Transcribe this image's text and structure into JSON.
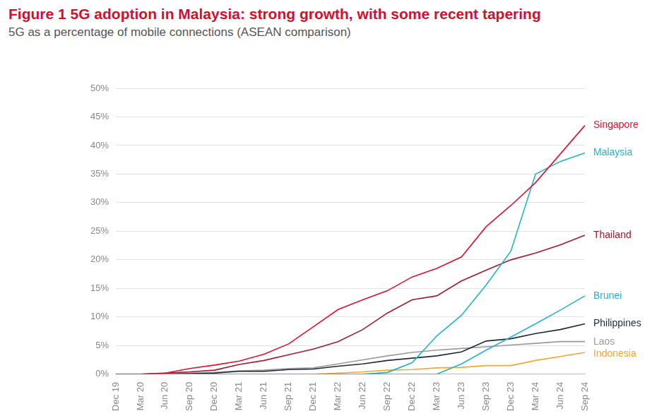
{
  "chart_data": {
    "type": "line",
    "title": "Figure 1 5G adoption in Malaysia: strong growth, with some recent tapering",
    "subtitle": "5G as a percentage of mobile connections (ASEAN comparison)",
    "categories": [
      "Dec 19",
      "Mar 20",
      "Jun 20",
      "Sep 20",
      "Dec 20",
      "Mar 21",
      "Jun 21",
      "Sep 21",
      "Dec 21",
      "Mar 22",
      "Jun 22",
      "Sep 22",
      "Dec 22",
      "Mar 23",
      "Jun 23",
      "Sep 23",
      "Dec 23",
      "Mar 24",
      "Jun 24",
      "Sep 24"
    ],
    "series": [
      {
        "name": "Singapore",
        "color": "#e4102e",
        "values": [
          0,
          0,
          0.2,
          1.0,
          1.6,
          2.3,
          3.5,
          5.3,
          8.3,
          11.3,
          13.0,
          14.6,
          17.0,
          18.5,
          20.5,
          25.8,
          29.5,
          33.5,
          38.5,
          43.5
        ]
      },
      {
        "name": "Malaysia",
        "color": "#1fb5c4",
        "values": [
          0,
          0,
          0,
          0,
          0,
          0,
          0,
          0,
          0,
          0,
          0,
          0.3,
          2.0,
          6.7,
          10.3,
          15.6,
          21.5,
          35.0,
          37.2,
          38.7
        ]
      },
      {
        "name": "Thailand",
        "color": "#a6192e",
        "values": [
          0,
          0,
          0.2,
          0.4,
          0.7,
          1.7,
          2.4,
          3.4,
          4.4,
          5.7,
          7.8,
          10.7,
          13.0,
          13.7,
          16.3,
          18.2,
          20.0,
          21.2,
          22.6,
          24.3
        ]
      },
      {
        "name": "Brunei",
        "color": "#22b4d6",
        "values": [
          0,
          0,
          0,
          0,
          0,
          0,
          0,
          0,
          0,
          0,
          0,
          0,
          0,
          0,
          1.8,
          4.2,
          6.5,
          8.8,
          11.2,
          13.7
        ]
      },
      {
        "name": "Philippines",
        "color": "#1c2b3a",
        "values": [
          0,
          0,
          0,
          0.1,
          0.2,
          0.5,
          0.5,
          0.8,
          0.9,
          1.4,
          1.8,
          2.4,
          2.8,
          3.2,
          3.9,
          5.8,
          6.2,
          7.1,
          7.8,
          8.8
        ]
      },
      {
        "name": "Laos",
        "color": "#9a9a9a",
        "values": [
          0,
          0,
          0.1,
          0.2,
          0.3,
          0.6,
          0.7,
          1.0,
          1.1,
          1.8,
          2.5,
          3.2,
          3.8,
          4.2,
          4.5,
          4.8,
          5.1,
          5.4,
          5.7,
          5.7
        ]
      },
      {
        "name": "Indonesia",
        "color": "#f7a531",
        "values": [
          0,
          0,
          0,
          0,
          0,
          0,
          0,
          0,
          0,
          0.2,
          0.4,
          0.7,
          0.8,
          1.1,
          1.2,
          1.5,
          1.5,
          2.4,
          3.1,
          3.8
        ]
      }
    ],
    "ylim": [
      0,
      50
    ],
    "yticks": [
      {
        "value": 0,
        "label": "0%"
      },
      {
        "value": 5,
        "label": "5%"
      },
      {
        "value": 10,
        "label": "10%"
      },
      {
        "value": 15,
        "label": "15%"
      },
      {
        "value": 20,
        "label": "20%"
      },
      {
        "value": 25,
        "label": "25%"
      },
      {
        "value": 30,
        "label": "30%"
      },
      {
        "value": 35,
        "label": "35%"
      },
      {
        "value": 40,
        "label": "40%"
      },
      {
        "value": 45,
        "label": "45%"
      },
      {
        "value": 50,
        "label": "50%"
      }
    ],
    "grid": true
  }
}
